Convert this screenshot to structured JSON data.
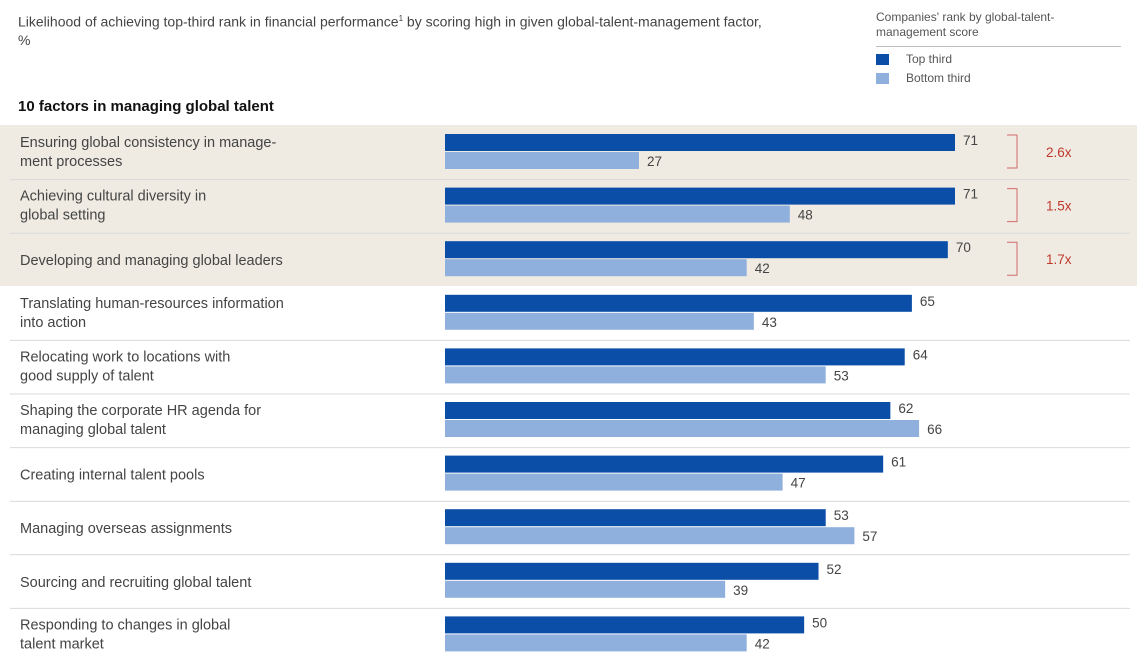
{
  "header": {
    "subtitle_before": "Likelihood of achieving top-third rank in financial performance",
    "subtitle_footnote": "1",
    "subtitle_after": " by scoring high in given global-talent-management factor, %",
    "section_title": "10 factors in managing global talent"
  },
  "legend": {
    "title": "Companies' rank by global-talent-management score",
    "items": [
      {
        "label": "Top third",
        "color": "#0a4ea8"
      },
      {
        "label": "Bottom third",
        "color": "#8fb0dc"
      }
    ]
  },
  "colors": {
    "top": "#0a4ea8",
    "bottom": "#8fb0dc",
    "ratio": "#c0392b",
    "highlight": "#efebe3"
  },
  "chart_data": {
    "type": "bar",
    "orientation": "horizontal",
    "title": "10 factors in managing global talent",
    "categories": [
      [
        "Ensuring global consistency in manage-",
        "ment processes"
      ],
      [
        "Achieving cultural diversity in",
        "global setting"
      ],
      [
        "Developing and managing global leaders"
      ],
      [
        "Translating human-resources information",
        "into action"
      ],
      [
        "Relocating work to locations with",
        "good supply of talent"
      ],
      [
        "Shaping the corporate HR agenda for",
        "managing global talent"
      ],
      [
        "Creating internal talent pools"
      ],
      [
        "Managing overseas assignments"
      ],
      [
        "Sourcing and recruiting global talent"
      ],
      [
        "Responding to changes in global",
        "talent market"
      ]
    ],
    "series": [
      {
        "name": "Top third",
        "values": [
          71,
          71,
          70,
          65,
          64,
          62,
          61,
          53,
          52,
          50
        ]
      },
      {
        "name": "Bottom third",
        "values": [
          27,
          48,
          42,
          43,
          53,
          66,
          47,
          57,
          39,
          42
        ]
      }
    ],
    "ratios": [
      "2.6x",
      "1.5x",
      "1.7x"
    ],
    "highlighted_count": 3,
    "xlim": [
      0,
      80
    ],
    "grid": false
  }
}
